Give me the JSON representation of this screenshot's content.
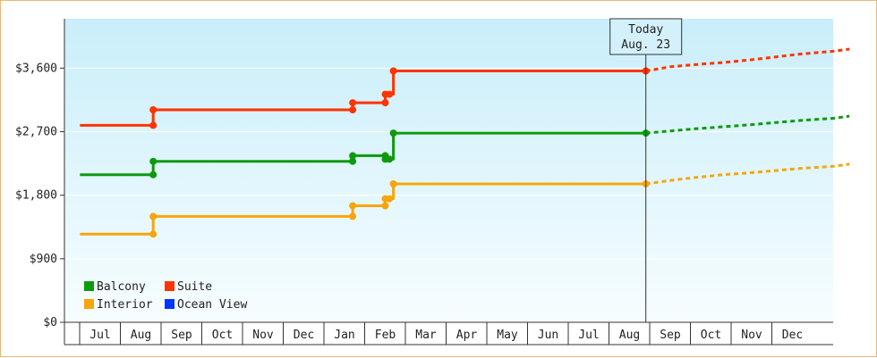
{
  "chart_data": {
    "type": "line",
    "title": "",
    "xlabel": "",
    "ylabel": "",
    "y_ticks": [
      "$0",
      "$900",
      "$1,800",
      "$2,700",
      "$3,600"
    ],
    "ylim": [
      0,
      4300
    ],
    "x_months": [
      "Jul",
      "Aug",
      "Sep",
      "Oct",
      "Nov",
      "Dec",
      "Jan",
      "Feb",
      "Mar",
      "Apr",
      "May",
      "Jun",
      "Jul",
      "Aug",
      "Sep",
      "Oct",
      "Nov",
      "Dec"
    ],
    "today_marker": {
      "line1": "Today",
      "line2": "Aug. 23",
      "x": 13.4
    },
    "legend": [
      {
        "name": "Balcony",
        "color": "#0d9a0d"
      },
      {
        "name": "Suite",
        "color": "#ff3300"
      },
      {
        "name": "Interior",
        "color": "#f7a50c"
      },
      {
        "name": "Ocean View",
        "color": "#0033ff"
      }
    ],
    "series": [
      {
        "name": "Suite",
        "color": "#ff3300",
        "points": [
          [
            -0.5,
            2790
          ],
          [
            1.3,
            2790
          ],
          [
            1.3,
            3010
          ],
          [
            6.2,
            3010
          ],
          [
            6.2,
            3110
          ],
          [
            7.0,
            3110
          ],
          [
            7.0,
            3230
          ],
          [
            7.2,
            3230
          ],
          [
            7.2,
            3560
          ],
          [
            13.4,
            3560
          ]
        ],
        "markers": [
          [
            1.3,
            2790
          ],
          [
            1.3,
            3010
          ],
          [
            6.2,
            3010
          ],
          [
            6.2,
            3110
          ],
          [
            7.0,
            3110
          ],
          [
            7.0,
            3230
          ],
          [
            7.1,
            3230
          ],
          [
            7.2,
            3560
          ],
          [
            13.4,
            3560
          ]
        ],
        "forecast": [
          [
            13.4,
            3560
          ],
          [
            14.0,
            3620
          ],
          [
            14.6,
            3650
          ],
          [
            15.3,
            3680
          ],
          [
            16.0,
            3720
          ],
          [
            16.6,
            3760
          ],
          [
            17.2,
            3800
          ],
          [
            18.0,
            3840
          ],
          [
            18.4,
            3870
          ]
        ]
      },
      {
        "name": "Balcony",
        "color": "#0d9a0d",
        "points": [
          [
            -0.5,
            2090
          ],
          [
            1.3,
            2090
          ],
          [
            1.3,
            2280
          ],
          [
            6.2,
            2280
          ],
          [
            6.2,
            2360
          ],
          [
            7.0,
            2360
          ],
          [
            7.0,
            2310
          ],
          [
            7.2,
            2310
          ],
          [
            7.2,
            2680
          ],
          [
            13.4,
            2680
          ]
        ],
        "markers": [
          [
            1.3,
            2090
          ],
          [
            1.3,
            2280
          ],
          [
            6.2,
            2280
          ],
          [
            6.2,
            2360
          ],
          [
            7.0,
            2360
          ],
          [
            7.0,
            2310
          ],
          [
            7.1,
            2310
          ],
          [
            7.2,
            2680
          ],
          [
            13.4,
            2680
          ]
        ],
        "forecast": [
          [
            13.4,
            2680
          ],
          [
            14.0,
            2710
          ],
          [
            14.6,
            2740
          ],
          [
            15.3,
            2770
          ],
          [
            16.0,
            2800
          ],
          [
            16.6,
            2830
          ],
          [
            17.2,
            2860
          ],
          [
            18.0,
            2890
          ],
          [
            18.4,
            2920
          ]
        ]
      },
      {
        "name": "Interior",
        "color": "#f7a50c",
        "points": [
          [
            -0.5,
            1250
          ],
          [
            1.3,
            1250
          ],
          [
            1.3,
            1500
          ],
          [
            6.2,
            1500
          ],
          [
            6.2,
            1650
          ],
          [
            7.0,
            1650
          ],
          [
            7.0,
            1750
          ],
          [
            7.2,
            1750
          ],
          [
            7.2,
            1960
          ],
          [
            13.4,
            1960
          ]
        ],
        "markers": [
          [
            1.3,
            1250
          ],
          [
            1.3,
            1500
          ],
          [
            6.2,
            1500
          ],
          [
            6.2,
            1650
          ],
          [
            7.0,
            1650
          ],
          [
            7.0,
            1750
          ],
          [
            7.1,
            1750
          ],
          [
            7.2,
            1960
          ],
          [
            13.4,
            1960
          ]
        ],
        "forecast": [
          [
            13.4,
            1960
          ],
          [
            14.0,
            2010
          ],
          [
            14.6,
            2050
          ],
          [
            15.3,
            2090
          ],
          [
            16.0,
            2120
          ],
          [
            16.6,
            2150
          ],
          [
            17.2,
            2180
          ],
          [
            18.0,
            2210
          ],
          [
            18.4,
            2240
          ]
        ]
      }
    ]
  }
}
